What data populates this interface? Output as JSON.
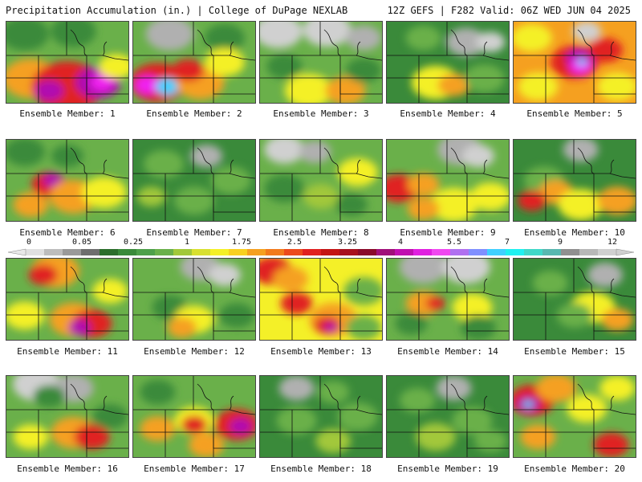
{
  "header": {
    "title": "Precipitation Accumulation (in.) | College of DuPage NEXLAB",
    "run_info": "12Z GEFS | F282 Valid: 06Z WED JUN 04 2025"
  },
  "colors": {
    "background": "#ffffff",
    "low_green": "#3a8a3a",
    "mid_green": "#6ab04a",
    "yellow": "#f4f028",
    "orange": "#f5a020",
    "red": "#e02020",
    "purple": "#b010b0",
    "magenta": "#f020f0",
    "gray_trace": "#b0b0b0"
  },
  "colorbar": {
    "tick_labels": [
      "0",
      "0.05",
      "0.25",
      "1",
      "1.75",
      "2.5",
      "3.25",
      "4",
      "5.5",
      "7",
      "9",
      "12"
    ],
    "swatches": [
      "#e0e0e0",
      "#bdbdbd",
      "#9a9a9a",
      "#6e6e6e",
      "#2c6e2c",
      "#3a8a3a",
      "#4ea04a",
      "#6ab04a",
      "#a2c83a",
      "#d8e030",
      "#f4f028",
      "#f8d020",
      "#f5a020",
      "#f27a1c",
      "#ec4a1c",
      "#e02020",
      "#c41414",
      "#a8101e",
      "#8a0a2a",
      "#a0107a",
      "#c010b0",
      "#e020e0",
      "#f048f0",
      "#b070f0",
      "#8090ff",
      "#40d0ff",
      "#20f0f0",
      "#40d8c8",
      "#58b8b0",
      "#909090",
      "#b8b8b8",
      "#d0d0d0"
    ]
  },
  "members": [
    {
      "label": "Ensemble Member: 1",
      "base": "#6ab04a",
      "blobs": [
        [
          0.15,
          0.15,
          30,
          "#3a8a3a"
        ],
        [
          0.55,
          0.12,
          28,
          "#3a8a3a"
        ],
        [
          0.2,
          0.7,
          35,
          "#f5a020"
        ],
        [
          0.5,
          0.8,
          45,
          "#e02020"
        ],
        [
          0.75,
          0.75,
          28,
          "#b010b0"
        ],
        [
          0.78,
          0.75,
          14,
          "#f020f0"
        ],
        [
          0.35,
          0.85,
          18,
          "#b010b0"
        ],
        [
          0.9,
          0.55,
          22,
          "#f4f028"
        ]
      ]
    },
    {
      "label": "Ensemble Member: 2",
      "base": "#6ab04a",
      "blobs": [
        [
          0.3,
          0.15,
          30,
          "#b0b0b0"
        ],
        [
          0.75,
          0.2,
          25,
          "#3a8a3a"
        ],
        [
          0.2,
          0.75,
          35,
          "#e02020"
        ],
        [
          0.12,
          0.78,
          16,
          "#f020f0"
        ],
        [
          0.28,
          0.8,
          15,
          "#40d0ff"
        ],
        [
          0.55,
          0.75,
          30,
          "#f5a020"
        ],
        [
          0.75,
          0.5,
          25,
          "#f4f028"
        ],
        [
          0.45,
          0.6,
          20,
          "#e02020"
        ]
      ]
    },
    {
      "label": "Ensemble Member: 3",
      "base": "#6ab04a",
      "blobs": [
        [
          0.15,
          0.12,
          30,
          "#d0d0d0"
        ],
        [
          0.55,
          0.1,
          30,
          "#d0d0d0"
        ],
        [
          0.85,
          0.2,
          22,
          "#b0b0b0"
        ],
        [
          0.4,
          0.85,
          30,
          "#f4f028"
        ],
        [
          0.7,
          0.85,
          25,
          "#f5a020"
        ],
        [
          0.2,
          0.55,
          22,
          "#3a8a3a"
        ],
        [
          0.85,
          0.6,
          22,
          "#3a8a3a"
        ]
      ]
    },
    {
      "label": "Ensemble Member: 4",
      "base": "#3a8a3a",
      "blobs": [
        [
          0.3,
          0.2,
          22,
          "#6ab04a"
        ],
        [
          0.65,
          0.25,
          25,
          "#b0b0b0"
        ],
        [
          0.85,
          0.25,
          18,
          "#d0d0d0"
        ],
        [
          0.4,
          0.75,
          30,
          "#f4f028"
        ],
        [
          0.55,
          0.78,
          20,
          "#f5a020"
        ],
        [
          0.8,
          0.7,
          25,
          "#6ab04a"
        ]
      ]
    },
    {
      "label": "Ensemble Member: 5",
      "base": "#f5a020",
      "blobs": [
        [
          0.15,
          0.2,
          25,
          "#f4f028"
        ],
        [
          0.5,
          0.5,
          30,
          "#e02020"
        ],
        [
          0.55,
          0.45,
          18,
          "#b010b0"
        ],
        [
          0.55,
          0.55,
          14,
          "#f020f0"
        ],
        [
          0.56,
          0.5,
          6,
          "#40d0ff"
        ],
        [
          0.75,
          0.35,
          22,
          "#e02020"
        ],
        [
          0.85,
          0.8,
          25,
          "#f4f028"
        ],
        [
          0.2,
          0.8,
          25,
          "#f4f028"
        ],
        [
          0.6,
          0.12,
          18,
          "#d0d0d0"
        ]
      ]
    },
    {
      "label": "Ensemble Member: 6",
      "base": "#6ab04a",
      "blobs": [
        [
          0.15,
          0.15,
          25,
          "#3a8a3a"
        ],
        [
          0.35,
          0.55,
          22,
          "#e02020"
        ],
        [
          0.38,
          0.5,
          12,
          "#b010b0"
        ],
        [
          0.55,
          0.7,
          30,
          "#f5a020"
        ],
        [
          0.8,
          0.65,
          28,
          "#f4f028"
        ],
        [
          0.2,
          0.8,
          22,
          "#f5a020"
        ],
        [
          0.5,
          0.2,
          20,
          "#3a8a3a"
        ]
      ]
    },
    {
      "label": "Ensemble Member: 7",
      "base": "#3a8a3a",
      "blobs": [
        [
          0.25,
          0.3,
          25,
          "#6ab04a"
        ],
        [
          0.6,
          0.2,
          20,
          "#b0b0b0"
        ],
        [
          0.8,
          0.5,
          25,
          "#6ab04a"
        ],
        [
          0.5,
          0.75,
          25,
          "#6ab04a"
        ],
        [
          0.15,
          0.7,
          18,
          "#a2c83a"
        ]
      ]
    },
    {
      "label": "Ensemble Member: 8",
      "base": "#6ab04a",
      "blobs": [
        [
          0.2,
          0.12,
          25,
          "#d0d0d0"
        ],
        [
          0.45,
          0.15,
          20,
          "#b0b0b0"
        ],
        [
          0.8,
          0.4,
          25,
          "#f4f028"
        ],
        [
          0.2,
          0.6,
          25,
          "#3a8a3a"
        ],
        [
          0.5,
          0.7,
          22,
          "#a2c83a"
        ],
        [
          0.75,
          0.8,
          20,
          "#3a8a3a"
        ]
      ]
    },
    {
      "label": "Ensemble Member: 9",
      "base": "#6ab04a",
      "blobs": [
        [
          0.6,
          0.12,
          28,
          "#b0b0b0"
        ],
        [
          0.75,
          0.2,
          20,
          "#d0d0d0"
        ],
        [
          0.1,
          0.6,
          25,
          "#e02020"
        ],
        [
          0.3,
          0.55,
          20,
          "#f5a020"
        ],
        [
          0.55,
          0.8,
          30,
          "#f4f028"
        ],
        [
          0.85,
          0.7,
          25,
          "#f4f028"
        ],
        [
          0.3,
          0.85,
          20,
          "#f5a020"
        ]
      ]
    },
    {
      "label": "Ensemble Member: 10",
      "base": "#3a8a3a",
      "blobs": [
        [
          0.55,
          0.12,
          22,
          "#b0b0b0"
        ],
        [
          0.25,
          0.5,
          25,
          "#6ab04a"
        ],
        [
          0.35,
          0.65,
          22,
          "#f5a020"
        ],
        [
          0.55,
          0.8,
          28,
          "#f4f028"
        ],
        [
          0.85,
          0.75,
          25,
          "#f5a020"
        ],
        [
          0.15,
          0.75,
          18,
          "#e02020"
        ]
      ]
    },
    {
      "label": "Ensemble Member: 11",
      "base": "#6ab04a",
      "blobs": [
        [
          0.4,
          0.15,
          30,
          "#f5a020"
        ],
        [
          0.3,
          0.2,
          18,
          "#e02020"
        ],
        [
          0.15,
          0.7,
          25,
          "#f4f028"
        ],
        [
          0.55,
          0.75,
          30,
          "#f5a020"
        ],
        [
          0.7,
          0.8,
          25,
          "#e02020"
        ],
        [
          0.6,
          0.85,
          14,
          "#b010b0"
        ],
        [
          0.85,
          0.4,
          22,
          "#f4f028"
        ]
      ]
    },
    {
      "label": "Ensemble Member: 12",
      "base": "#6ab04a",
      "blobs": [
        [
          0.55,
          0.1,
          25,
          "#b0b0b0"
        ],
        [
          0.75,
          0.2,
          20,
          "#d0d0d0"
        ],
        [
          0.3,
          0.6,
          22,
          "#3a8a3a"
        ],
        [
          0.5,
          0.75,
          25,
          "#f4f028"
        ],
        [
          0.85,
          0.7,
          22,
          "#3a8a3a"
        ],
        [
          0.4,
          0.85,
          18,
          "#f5a020"
        ]
      ]
    },
    {
      "label": "Ensemble Member: 13",
      "base": "#f4f028",
      "blobs": [
        [
          0.1,
          0.15,
          25,
          "#e02020"
        ],
        [
          0.25,
          0.25,
          22,
          "#f5a020"
        ],
        [
          0.3,
          0.55,
          20,
          "#e02020"
        ],
        [
          0.6,
          0.75,
          30,
          "#f5a020"
        ],
        [
          0.55,
          0.82,
          16,
          "#e02020"
        ],
        [
          0.58,
          0.85,
          8,
          "#b010b0"
        ],
        [
          0.85,
          0.4,
          25,
          "#6ab04a"
        ],
        [
          0.85,
          0.85,
          22,
          "#6ab04a"
        ]
      ]
    },
    {
      "label": "Ensemble Member: 14",
      "base": "#6ab04a",
      "blobs": [
        [
          0.3,
          0.1,
          30,
          "#b0b0b0"
        ],
        [
          0.65,
          0.1,
          30,
          "#d0d0d0"
        ],
        [
          0.3,
          0.55,
          22,
          "#f5a020"
        ],
        [
          0.4,
          0.55,
          12,
          "#e02020"
        ],
        [
          0.7,
          0.6,
          25,
          "#f4f028"
        ],
        [
          0.2,
          0.8,
          20,
          "#3a8a3a"
        ],
        [
          0.75,
          0.85,
          22,
          "#3a8a3a"
        ]
      ]
    },
    {
      "label": "Ensemble Member: 15",
      "base": "#3a8a3a",
      "blobs": [
        [
          0.75,
          0.2,
          22,
          "#b0b0b0"
        ],
        [
          0.3,
          0.3,
          22,
          "#6ab04a"
        ],
        [
          0.65,
          0.6,
          28,
          "#f4f028"
        ],
        [
          0.5,
          0.7,
          22,
          "#6ab04a"
        ],
        [
          0.85,
          0.75,
          20,
          "#f5a020"
        ]
      ]
    },
    {
      "label": "Ensemble Member: 16",
      "base": "#6ab04a",
      "blobs": [
        [
          0.25,
          0.1,
          30,
          "#d0d0d0"
        ],
        [
          0.55,
          0.15,
          25,
          "#b0b0b0"
        ],
        [
          0.35,
          0.25,
          20,
          "#3a8a3a"
        ],
        [
          0.55,
          0.7,
          28,
          "#f5a020"
        ],
        [
          0.7,
          0.75,
          22,
          "#e02020"
        ],
        [
          0.2,
          0.75,
          22,
          "#f4f028"
        ],
        [
          0.85,
          0.5,
          22,
          "#3a8a3a"
        ]
      ]
    },
    {
      "label": "Ensemble Member: 17",
      "base": "#6ab04a",
      "blobs": [
        [
          0.2,
          0.2,
          22,
          "#3a8a3a"
        ],
        [
          0.5,
          0.55,
          25,
          "#f4f028"
        ],
        [
          0.5,
          0.6,
          16,
          "#e02020"
        ],
        [
          0.85,
          0.6,
          28,
          "#e02020"
        ],
        [
          0.88,
          0.62,
          14,
          "#b010b0"
        ],
        [
          0.2,
          0.65,
          22,
          "#f5a020"
        ],
        [
          0.6,
          0.85,
          22,
          "#f5a020"
        ]
      ]
    },
    {
      "label": "Ensemble Member: 18",
      "base": "#3a8a3a",
      "blobs": [
        [
          0.3,
          0.15,
          22,
          "#b0b0b0"
        ],
        [
          0.6,
          0.2,
          20,
          "#6ab04a"
        ],
        [
          0.3,
          0.55,
          25,
          "#6ab04a"
        ],
        [
          0.8,
          0.5,
          25,
          "#6ab04a"
        ],
        [
          0.6,
          0.8,
          22,
          "#a2c83a"
        ]
      ]
    },
    {
      "label": "Ensemble Member: 19",
      "base": "#3a8a3a",
      "blobs": [
        [
          0.55,
          0.15,
          22,
          "#b0b0b0"
        ],
        [
          0.25,
          0.3,
          22,
          "#6ab04a"
        ],
        [
          0.7,
          0.55,
          25,
          "#6ab04a"
        ],
        [
          0.4,
          0.75,
          25,
          "#a2c83a"
        ],
        [
          0.85,
          0.8,
          20,
          "#6ab04a"
        ]
      ]
    },
    {
      "label": "Ensemble Member: 20",
      "base": "#6ab04a",
      "blobs": [
        [
          0.15,
          0.3,
          28,
          "#e02020"
        ],
        [
          0.12,
          0.35,
          14,
          "#b010b0"
        ],
        [
          0.12,
          0.35,
          6,
          "#40d0ff"
        ],
        [
          0.35,
          0.15,
          25,
          "#f5a020"
        ],
        [
          0.2,
          0.75,
          22,
          "#f5a020"
        ],
        [
          0.6,
          0.4,
          25,
          "#f4f028"
        ],
        [
          0.85,
          0.15,
          22,
          "#f4f028"
        ],
        [
          0.8,
          0.85,
          22,
          "#e02020"
        ]
      ]
    }
  ]
}
